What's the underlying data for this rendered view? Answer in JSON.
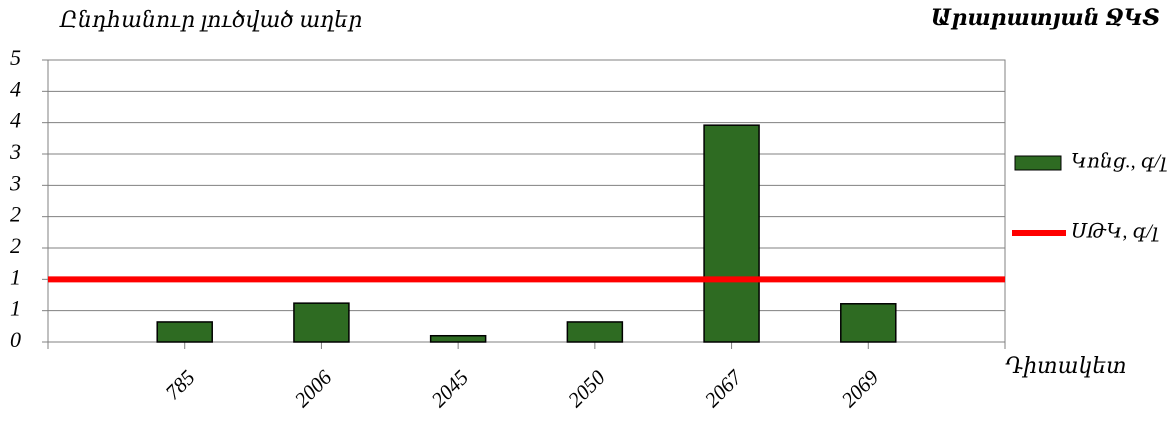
{
  "chart_data": {
    "type": "bar",
    "title": "Ընդհանուր լուծված աղեր",
    "subtitle": "Արարատյան ՋԿՏ",
    "x_label": "Դիտակետ",
    "categories": [
      null,
      "785",
      "2006",
      "2045",
      "2050",
      "2067",
      "2069",
      null
    ],
    "series": [
      {
        "name": "Կոնց., գ/լ",
        "color": "#2e6b22",
        "type": "bar",
        "values": [
          null,
          0.32,
          0.62,
          0.1,
          0.32,
          3.46,
          0.61,
          null
        ]
      },
      {
        "name": "ՍԹԿ, գ/լ",
        "color": "#ff0000",
        "type": "line",
        "values": [
          1,
          1,
          1,
          1,
          1,
          1,
          1,
          1
        ]
      }
    ],
    "ylim": [
      0,
      4.5
    ],
    "yticks": [
      0,
      {
        "value": 0.5,
        "label": "1"
      },
      1,
      {
        "value": 1.5,
        "label": "2"
      },
      2,
      {
        "value": 2.5,
        "label": "3"
      },
      3,
      {
        "value": 3.5,
        "label": "4"
      },
      4,
      {
        "value": 4.5,
        "label": "5"
      }
    ],
    "grid": true,
    "legend": "right"
  }
}
